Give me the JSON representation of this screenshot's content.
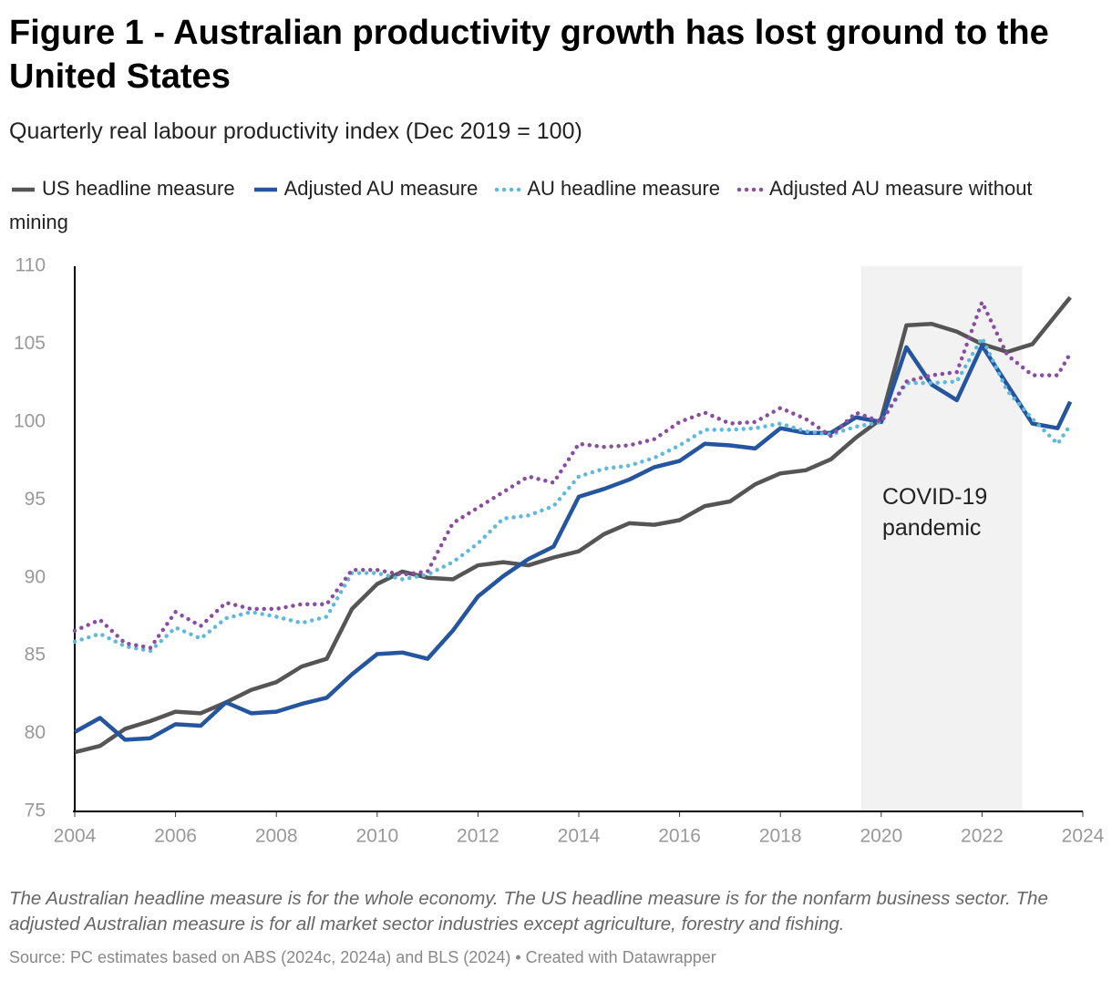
{
  "chart_data": {
    "type": "line",
    "title": "Figure 1 - Australian productivity growth has lost ground to the United States",
    "subtitle": "Quarterly real labour productivity index (Dec 2019 = 100)",
    "x": [
      2004.0,
      2004.5,
      2005.0,
      2005.5,
      2006.0,
      2006.5,
      2007.0,
      2007.5,
      2008.0,
      2008.5,
      2009.0,
      2009.5,
      2010.0,
      2010.5,
      2011.0,
      2011.5,
      2012.0,
      2012.5,
      2013.0,
      2013.5,
      2014.0,
      2014.5,
      2015.0,
      2015.5,
      2016.0,
      2016.5,
      2017.0,
      2017.5,
      2018.0,
      2018.5,
      2019.0,
      2019.5,
      2020.0,
      2020.5,
      2021.0,
      2021.5,
      2022.0,
      2022.5,
      2023.0,
      2023.5,
      2023.75
    ],
    "series": [
      {
        "name": "US headline measure",
        "color": "#555555",
        "style": "solid",
        "values": [
          78.8,
          79.2,
          80.3,
          80.8,
          81.4,
          81.3,
          82.0,
          82.8,
          83.3,
          84.3,
          84.8,
          88.0,
          89.6,
          90.4,
          90.0,
          89.9,
          90.8,
          91.0,
          90.8,
          91.3,
          91.7,
          92.8,
          93.5,
          93.4,
          93.7,
          94.6,
          94.9,
          96.0,
          96.7,
          96.9,
          97.6,
          99.0,
          100.2,
          106.2,
          106.3,
          105.8,
          105.0,
          104.5,
          105.0,
          107.0,
          108.0
        ]
      },
      {
        "name": "Adjusted AU measure",
        "color": "#24559e",
        "style": "solid",
        "values": [
          80.1,
          81.0,
          79.6,
          79.7,
          80.6,
          80.5,
          82.0,
          81.3,
          81.4,
          81.9,
          82.3,
          83.8,
          85.1,
          85.2,
          84.8,
          86.6,
          88.8,
          90.1,
          91.2,
          92.0,
          95.2,
          95.7,
          96.3,
          97.1,
          97.5,
          98.6,
          98.5,
          98.3,
          99.6,
          99.3,
          99.3,
          100.3,
          100.0,
          104.8,
          102.4,
          101.4,
          104.9,
          102.4,
          99.9,
          99.6,
          101.3
        ]
      },
      {
        "name": "AU headline measure",
        "color": "#5fb8de",
        "style": "dotted",
        "values": [
          85.9,
          86.4,
          85.6,
          85.3,
          86.8,
          86.1,
          87.4,
          87.8,
          87.5,
          87.1,
          87.5,
          90.3,
          90.3,
          89.9,
          90.2,
          91.0,
          92.2,
          93.8,
          94.0,
          94.6,
          96.5,
          97.0,
          97.2,
          97.7,
          98.5,
          99.5,
          99.5,
          99.6,
          99.9,
          99.4,
          99.2,
          99.7,
          100.0,
          102.5,
          102.5,
          102.6,
          105.4,
          102.0,
          100.2,
          98.6,
          99.8
        ]
      },
      {
        "name": "Adjusted AU measure without mining",
        "color": "#8a4ea0",
        "style": "dotted",
        "values": [
          86.6,
          87.3,
          85.8,
          85.5,
          87.8,
          86.9,
          88.4,
          88.0,
          88.0,
          88.3,
          88.3,
          90.5,
          90.5,
          90.2,
          90.4,
          93.5,
          94.5,
          95.5,
          96.5,
          96.1,
          98.6,
          98.4,
          98.5,
          98.9,
          100.0,
          100.6,
          99.9,
          100.0,
          100.9,
          100.2,
          99.1,
          100.6,
          100.0,
          102.6,
          103.0,
          103.2,
          107.7,
          104.3,
          103.0,
          103.0,
          104.4
        ]
      }
    ],
    "xlim": [
      2004,
      2024
    ],
    "xticks": [
      2004,
      2006,
      2008,
      2010,
      2012,
      2014,
      2016,
      2018,
      2020,
      2022,
      2024
    ],
    "ylim": [
      75,
      110
    ],
    "yticks": [
      75,
      80,
      85,
      90,
      95,
      100,
      105,
      110
    ],
    "grid": false,
    "annotations": [
      {
        "text": "COVID-19 pandemic",
        "x_range": [
          2019.6,
          2022.8
        ],
        "color": "#f2f2f2"
      }
    ],
    "note": "The Australian headline measure is for the whole economy. The US headline measure is for the nonfarm business sector. The adjusted Australian measure is for all market sector industries except agriculture, forestry and fishing.",
    "source": "Source: PC estimates based on ABS (2024c, 2024a) and BLS (2024) • Created with Datawrapper"
  }
}
